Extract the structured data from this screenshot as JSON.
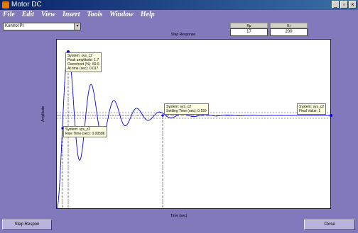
{
  "window": {
    "title": "Motor DC",
    "min": "_",
    "max": "▫",
    "close": "×"
  },
  "menu": [
    "File",
    "Edit",
    "View",
    "Insert",
    "Tools",
    "Window",
    "Help"
  ],
  "controller": {
    "selected": "Kontrol PI"
  },
  "params": [
    {
      "label": "Kp",
      "value": "17"
    },
    {
      "label": "Ki",
      "value": "200"
    }
  ],
  "plot": {
    "title": "Step Response",
    "xlabel": "Time (sec)",
    "ylabel": "Amplitude"
  },
  "tips": {
    "peak": [
      "System: sys_c2",
      "Peak amplitude: 1.7",
      "Overshoot (%): 69.6",
      "At time (sec): 0.017"
    ],
    "rise": [
      "System: sys_c2",
      "Rise Time (sec): 0.00586"
    ],
    "settle": [
      "System: sys_c2",
      "Settling Time (sec): 0.159"
    ],
    "final": [
      "System: sys_c2",
      "Final Value: 1"
    ]
  },
  "buttons": {
    "step": "Step Respon",
    "close": "Close"
  },
  "colors": {
    "background": "#8279bd",
    "response": "#0000ff",
    "plot_bg": "#ffffff"
  }
}
